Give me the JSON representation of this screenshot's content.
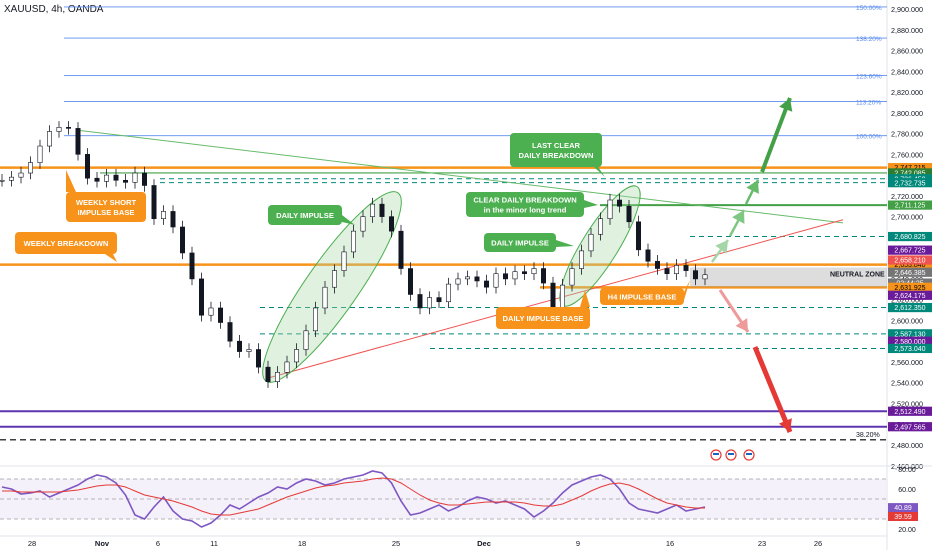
{
  "symbol": "XAUUSD, 4h, OANDA",
  "chart_data": {
    "type": "line",
    "title": "XAUUSD, 4h, OANDA",
    "y_axis": {
      "range": [
        2460,
        2910
      ],
      "ticks": [
        "2,900.000",
        "2,880.000",
        "2,860.000",
        "2,840.000",
        "2,820.000",
        "2,800.000",
        "2,780.000",
        "2,760.000",
        "2,740.000",
        "2,720.000",
        "2,700.000",
        "2,680.000",
        "2,660.000",
        "2,640.000",
        "2,620.000",
        "2,600.000",
        "2,580.000",
        "2,560.000",
        "2,540.000",
        "2,520.000",
        "2,500.000",
        "2,480.000",
        "2,460.000"
      ]
    },
    "x_axis": {
      "labels": [
        "28",
        "Nov",
        "6",
        "11",
        "18",
        "25",
        "Dec",
        "9",
        "16",
        "23",
        "26"
      ]
    },
    "price_series_close": [
      2735,
      2738,
      2742,
      2752,
      2768,
      2782,
      2786,
      2785,
      2760,
      2737,
      2734,
      2740,
      2735,
      2733,
      2742,
      2730,
      2698,
      2705,
      2690,
      2665,
      2640,
      2605,
      2612,
      2598,
      2580,
      2570,
      2572,
      2555,
      2541,
      2550,
      2560,
      2572,
      2590,
      2612,
      2632,
      2648,
      2666,
      2686,
      2700,
      2712,
      2700,
      2686,
      2650,
      2625,
      2612,
      2622,
      2618,
      2635,
      2640,
      2642,
      2638,
      2632,
      2645,
      2640,
      2647,
      2645,
      2650,
      2636,
      2612,
      2634,
      2650,
      2667,
      2683,
      2698,
      2716,
      2710,
      2695,
      2668,
      2657,
      2650,
      2645,
      2653,
      2648,
      2640,
      2644
    ],
    "fib_levels": [
      {
        "label": "150.00%",
        "price": 2902
      },
      {
        "label": "138.20%",
        "price": 2872
      },
      {
        "label": "123.60%",
        "price": 2836
      },
      {
        "label": "113.20%",
        "price": 2811
      },
      {
        "label": "100.00%",
        "price": 2778
      },
      {
        "label": "38.20%",
        "price": 2485
      }
    ],
    "price_labels": [
      {
        "text": "2,747.215",
        "price": 2747.2,
        "color": "#f7931a",
        "text_color": "#000000"
      },
      {
        "text": "2,742.085",
        "price": 2742.1,
        "color": "#2e7d32",
        "text_color": "#ffffff"
      },
      {
        "text": "2,736.450",
        "price": 2736.5,
        "color": "#00897b",
        "text_color": "#ffffff"
      },
      {
        "text": "2,732.735",
        "price": 2732.7,
        "color": "#00897b",
        "text_color": "#ffffff"
      },
      {
        "text": "2,711.125",
        "price": 2711.1,
        "color": "#43a047",
        "text_color": "#ffffff"
      },
      {
        "text": "2,680.825",
        "price": 2680.8,
        "color": "#00897b",
        "text_color": "#ffffff"
      },
      {
        "text": "2,667.725",
        "price": 2667.7,
        "color": "#6a1b9a",
        "text_color": "#ffffff"
      },
      {
        "text": "2,653.840",
        "price": 2653.8,
        "color": "#f7931a",
        "text_color": "#000000"
      },
      {
        "text": "2,658.210",
        "price": 2658.2,
        "color": "#ef5350",
        "text_color": "#ffffff"
      },
      {
        "text": "2,646.385",
        "price": 2646.4,
        "color": "#757575",
        "text_color": "#ffffff"
      },
      {
        "text": "02:44:25",
        "price": 2636.0,
        "color": "#757575",
        "text_color": "#ffffff"
      },
      {
        "text": "2,631.925",
        "price": 2631.9,
        "color": "#f7931a",
        "text_color": "#000000"
      },
      {
        "text": "2,624.175",
        "price": 2624.2,
        "color": "#6a1b9a",
        "text_color": "#ffffff"
      },
      {
        "text": "2,612.350",
        "price": 2612.4,
        "color": "#00897b",
        "text_color": "#ffffff"
      },
      {
        "text": "2,587.130",
        "price": 2587.1,
        "color": "#00897b",
        "text_color": "#ffffff"
      },
      {
        "text": "2,580.000",
        "price": 2580.0,
        "color": "#6a1b9a",
        "text_color": "#ffffff"
      },
      {
        "text": "2,573.040",
        "price": 2573.0,
        "color": "#00897b",
        "text_color": "#ffffff"
      },
      {
        "text": "2,512.490",
        "price": 2512.5,
        "color": "#6a1b9a",
        "text_color": "#ffffff"
      },
      {
        "text": "2,497.565",
        "price": 2497.6,
        "color": "#6a1b9a",
        "text_color": "#ffffff"
      }
    ],
    "annotations": [
      {
        "text": "WEEKLY SHORT\nIMPULSE BASE",
        "color": "#f7931a"
      },
      {
        "text": "WEEKLY BREAKDOWN",
        "color": "#f7931a"
      },
      {
        "text": "DAILY IMPULSE",
        "color": "#4caf50"
      },
      {
        "text": "LAST CLEAR\nDAILY BREAKDOWN",
        "color": "#4caf50"
      },
      {
        "text": "CLEAR DAILY BREAKDOWN\nin the minor long trend",
        "color": "#4caf50"
      },
      {
        "text": "DAILY IMPULSE",
        "color": "#4caf50"
      },
      {
        "text": "H4 IMPULSE BASE",
        "color": "#f7931a"
      },
      {
        "text": "DAILY IMPULSE BASE",
        "color": "#f7931a"
      },
      {
        "text": "NEUTRAL ZONE",
        "color": "#ffffff"
      }
    ],
    "rsi": {
      "ticks": [
        "80.00",
        "60.00",
        "40.00",
        "20.00"
      ],
      "values": [
        62,
        60,
        55,
        56,
        58,
        52,
        56,
        60,
        64,
        70,
        74,
        72,
        66,
        54,
        34,
        30,
        42,
        52,
        38,
        30,
        28,
        22,
        26,
        34,
        44,
        40,
        46,
        52,
        56,
        62,
        60,
        66,
        70,
        68,
        64,
        66,
        70,
        72,
        74,
        78,
        76,
        66,
        48,
        34,
        36,
        40,
        44,
        38,
        42,
        48,
        52,
        50,
        46,
        48,
        44,
        40,
        32,
        38,
        46,
        56,
        64,
        68,
        72,
        74,
        70,
        60,
        46,
        40,
        38,
        36,
        40,
        44,
        38,
        40,
        42
      ],
      "signal": [
        58,
        58,
        57,
        57,
        57,
        57,
        57,
        58,
        59,
        61,
        63,
        64,
        64,
        62,
        58,
        54,
        52,
        50,
        48,
        45,
        42,
        38,
        35,
        34,
        34,
        36,
        38,
        40,
        44,
        48,
        52,
        55,
        58,
        61,
        63,
        64,
        66,
        67,
        68,
        70,
        71,
        70,
        66,
        60,
        54,
        49,
        46,
        44,
        44,
        45,
        46,
        47,
        47,
        47,
        47,
        46,
        44,
        43,
        43,
        45,
        49,
        53,
        58,
        62,
        65,
        66,
        64,
        60,
        55,
        50,
        46,
        44,
        42,
        41,
        41
      ],
      "label_rsi": "40.89",
      "label_signal": "39.59"
    }
  }
}
